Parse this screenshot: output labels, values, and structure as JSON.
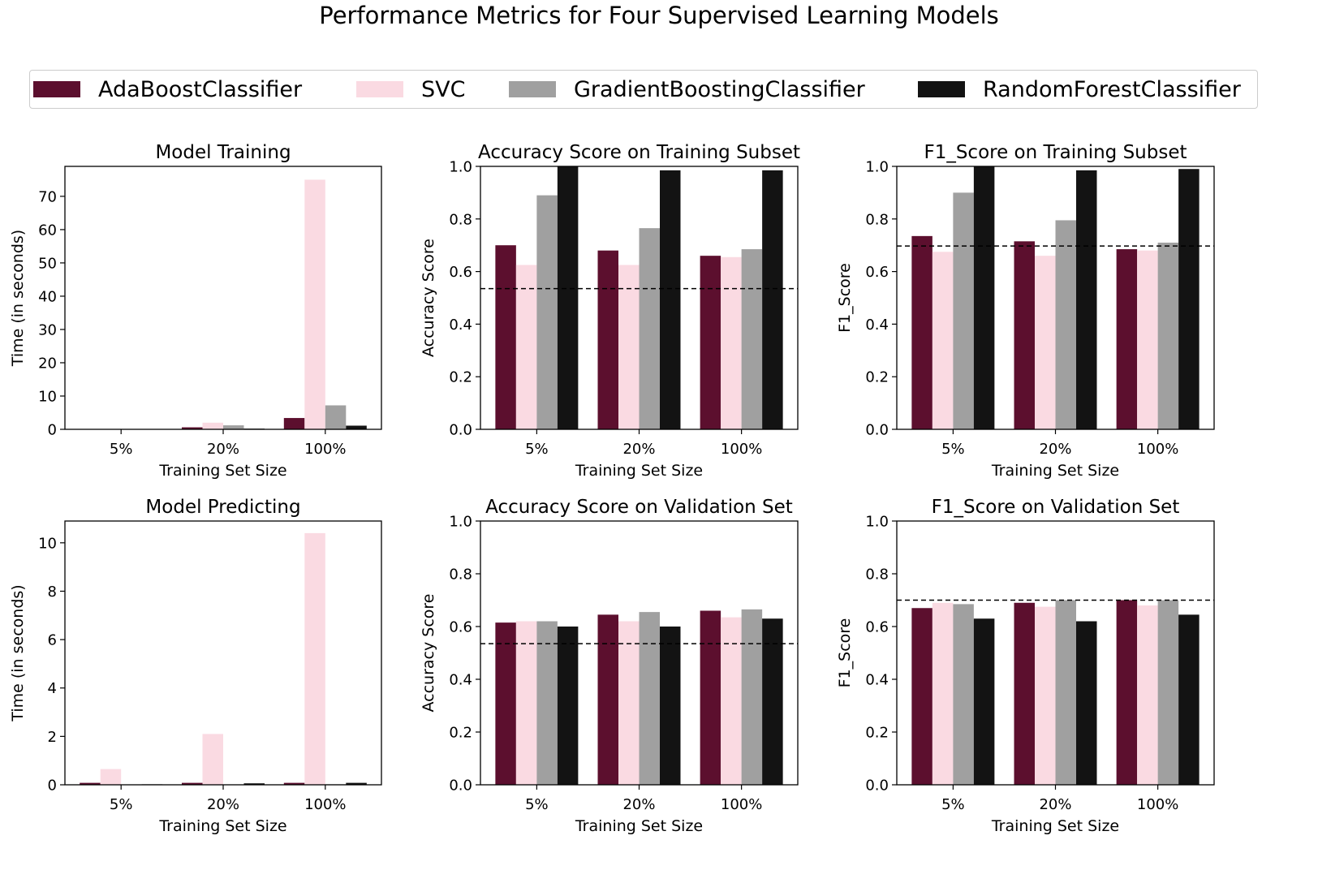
{
  "title": "Performance Metrics for Four Supervised Learning Models",
  "colors": {
    "AdaBoostClassifier": "#5c0f2e",
    "SVC": "#fadae2",
    "GradientBoostingClassifier": "#a0a0a0",
    "RandomForestClassifier": "#131313"
  },
  "legend": [
    "AdaBoostClassifier",
    "SVC",
    "GradientBoostingClassifier",
    "RandomForestClassifier"
  ],
  "chart_data": [
    {
      "type": "bar",
      "title": "Model Training",
      "xlabel": "Training Set Size",
      "ylabel": "Time (in seconds)",
      "categories": [
        "5%",
        "20%",
        "100%"
      ],
      "ylim": [
        0,
        79
      ],
      "yticks": [
        0,
        10,
        20,
        30,
        40,
        50,
        60,
        70
      ],
      "ytick_labels": [
        "0",
        "10",
        "20",
        "30",
        "40",
        "50",
        "60",
        "70"
      ],
      "series": [
        {
          "name": "AdaBoostClassifier",
          "values": [
            0.1,
            0.6,
            3.4
          ]
        },
        {
          "name": "SVC",
          "values": [
            0.1,
            2.0,
            75.0
          ]
        },
        {
          "name": "GradientBoostingClassifier",
          "values": [
            0.1,
            1.2,
            7.2
          ]
        },
        {
          "name": "RandomForestClassifier",
          "values": [
            0.05,
            0.2,
            1.1
          ]
        }
      ]
    },
    {
      "type": "bar",
      "title": "Accuracy Score on Training Subset",
      "xlabel": "Training Set Size",
      "ylabel": "Accuracy Score",
      "categories": [
        "5%",
        "20%",
        "100%"
      ],
      "ylim": [
        0,
        1.0
      ],
      "yticks": [
        0,
        0.2,
        0.4,
        0.6,
        0.8,
        1.0
      ],
      "ytick_labels": [
        "0.0",
        "0.2",
        "0.4",
        "0.6",
        "0.8",
        "1.0"
      ],
      "baseline": 0.535,
      "series": [
        {
          "name": "AdaBoostClassifier",
          "values": [
            0.7,
            0.68,
            0.66
          ]
        },
        {
          "name": "SVC",
          "values": [
            0.625,
            0.625,
            0.655
          ]
        },
        {
          "name": "GradientBoostingClassifier",
          "values": [
            0.89,
            0.765,
            0.685
          ]
        },
        {
          "name": "RandomForestClassifier",
          "values": [
            1.0,
            0.985,
            0.985
          ]
        }
      ]
    },
    {
      "type": "bar",
      "title": "F1_Score on Training Subset",
      "xlabel": "Training Set Size",
      "ylabel": "F1_Score",
      "categories": [
        "5%",
        "20%",
        "100%"
      ],
      "ylim": [
        0,
        1.0
      ],
      "yticks": [
        0,
        0.2,
        0.4,
        0.6,
        0.8,
        1.0
      ],
      "ytick_labels": [
        "0.0",
        "0.2",
        "0.4",
        "0.6",
        "0.8",
        "1.0"
      ],
      "baseline": 0.697,
      "series": [
        {
          "name": "AdaBoostClassifier",
          "values": [
            0.735,
            0.715,
            0.685
          ]
        },
        {
          "name": "SVC",
          "values": [
            0.675,
            0.66,
            0.68
          ]
        },
        {
          "name": "GradientBoostingClassifier",
          "values": [
            0.9,
            0.795,
            0.71
          ]
        },
        {
          "name": "RandomForestClassifier",
          "values": [
            1.0,
            0.985,
            0.99
          ]
        }
      ]
    },
    {
      "type": "bar",
      "title": "Model Predicting",
      "xlabel": "Training Set Size",
      "ylabel": "Time (in seconds)",
      "categories": [
        "5%",
        "20%",
        "100%"
      ],
      "ylim": [
        0,
        10.9
      ],
      "yticks": [
        0,
        2,
        4,
        6,
        8,
        10
      ],
      "ytick_labels": [
        "0",
        "2",
        "4",
        "6",
        "8",
        "10"
      ],
      "series": [
        {
          "name": "AdaBoostClassifier",
          "values": [
            0.08,
            0.08,
            0.08
          ]
        },
        {
          "name": "SVC",
          "values": [
            0.65,
            2.1,
            10.4
          ]
        },
        {
          "name": "GradientBoostingClassifier",
          "values": [
            0.01,
            0.01,
            0.02
          ]
        },
        {
          "name": "RandomForestClassifier",
          "values": [
            0.02,
            0.06,
            0.08
          ]
        }
      ]
    },
    {
      "type": "bar",
      "title": "Accuracy Score on Validation Set",
      "xlabel": "Training Set Size",
      "ylabel": "Accuracy Score",
      "categories": [
        "5%",
        "20%",
        "100%"
      ],
      "ylim": [
        0,
        1.0
      ],
      "yticks": [
        0,
        0.2,
        0.4,
        0.6,
        0.8,
        1.0
      ],
      "ytick_labels": [
        "0.0",
        "0.2",
        "0.4",
        "0.6",
        "0.8",
        "1.0"
      ],
      "baseline": 0.535,
      "series": [
        {
          "name": "AdaBoostClassifier",
          "values": [
            0.615,
            0.645,
            0.66
          ]
        },
        {
          "name": "SVC",
          "values": [
            0.62,
            0.62,
            0.635
          ]
        },
        {
          "name": "GradientBoostingClassifier",
          "values": [
            0.62,
            0.655,
            0.665
          ]
        },
        {
          "name": "RandomForestClassifier",
          "values": [
            0.6,
            0.6,
            0.63
          ]
        }
      ]
    },
    {
      "type": "bar",
      "title": "F1_Score on Validation Set",
      "xlabel": "Training Set Size",
      "ylabel": "F1_Score",
      "categories": [
        "5%",
        "20%",
        "100%"
      ],
      "ylim": [
        0,
        1.0
      ],
      "yticks": [
        0,
        0.2,
        0.4,
        0.6,
        0.8,
        1.0
      ],
      "ytick_labels": [
        "0.0",
        "0.2",
        "0.4",
        "0.6",
        "0.8",
        "1.0"
      ],
      "baseline": 0.7,
      "series": [
        {
          "name": "AdaBoostClassifier",
          "values": [
            0.67,
            0.69,
            0.7
          ]
        },
        {
          "name": "SVC",
          "values": [
            0.69,
            0.675,
            0.68
          ]
        },
        {
          "name": "GradientBoostingClassifier",
          "values": [
            0.685,
            0.7,
            0.7
          ]
        },
        {
          "name": "RandomForestClassifier",
          "values": [
            0.63,
            0.62,
            0.645
          ]
        }
      ]
    }
  ]
}
